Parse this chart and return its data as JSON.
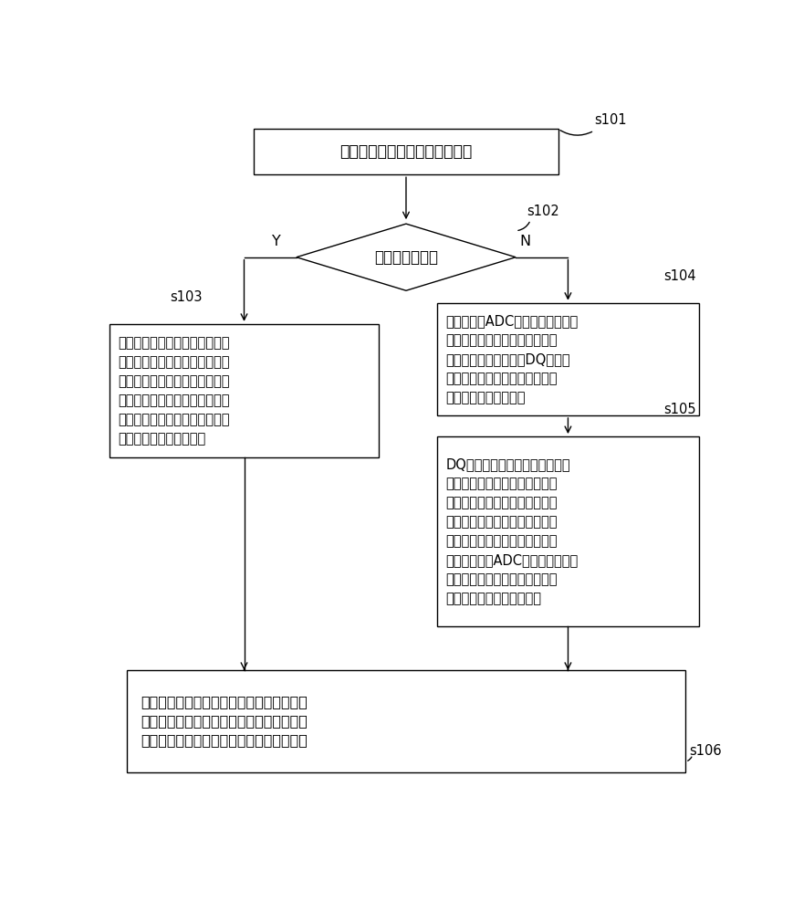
{
  "bg_color": "#ffffff",
  "text_color": "#000000",
  "s101_label": "s101",
  "s102_label": "s102",
  "s103_label": "s103",
  "s104_label": "s104",
  "s105_label": "s105",
  "s106_label": "s106",
  "box1_text": "接收单相电系统发送的输入信号",
  "diamond_text": "输入信号过零点",
  "box3_text": "过零点检测锁相器中的过零点频\n率检测模块依据经过过零点捕获\n装置模数转换后的输入信号最近\n一次过零点到此次过零点的时间\n间隔计算得到第二频率，并将第\n二频率送至卡尔曼滤波器",
  "box4_text": "模数转换器ADC对输入信号进行模\n数转换得到离散输入信号，将离\n散输入信号分别传送至DQ坐标系\n锁相器和过零点检测锁相器中的\n最大值法幅度检测模块",
  "box5_text": "DQ坐标系锁相器依据离散输入信\n号计算得到相位、第一幅值以及\n第一频率，并将相位、第一幅值\n以及第一频率送至卡尔曼滤波器\n；最大值法幅度检测模块确定离\n散输入信号在ADC采样周期内的最\n大值，并依据最大值计算得到第\n二幅值并送至卡尔曼滤波器",
  "box6_text": "卡尔曼滤波器对所有相位、第一幅值、第一\n频率、第二幅值以及第二频率进行卡尔曼滤\n波，得到最终幅值、最终相位以及最终频率",
  "Y_label": "Y",
  "N_label": "N"
}
